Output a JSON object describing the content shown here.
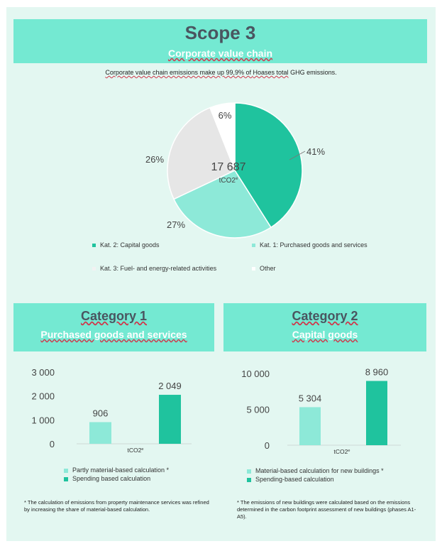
{
  "header": {
    "title": "Scope 3",
    "subtitle": "Corporate value chain",
    "intro_prefix": "Corporate value chain emissions make up 99,9% of ",
    "intro_mark": "Hoases total",
    "intro_suffix": " GHG emissions."
  },
  "colors": {
    "banner": "#74e9d2",
    "panel": "#e3f7f1",
    "dark_teal": "#1fc39e",
    "light_teal": "#8de9d8",
    "grey": "#e6e6e6",
    "white": "#ffffff"
  },
  "category1": {
    "title": "Category  1",
    "subtitle": "Purchased goods and services"
  },
  "category2": {
    "title": "Category 2",
    "subtitle": "Capital goods"
  },
  "chart_data": [
    {
      "type": "pie",
      "center_value": "17 687",
      "center_unit": "tCO2e",
      "slices": [
        {
          "name": "Kat. 2: Capital goods",
          "value": 41,
          "label": "41%",
          "color": "#1fc39e"
        },
        {
          "name": "Kat. 1: Purchased goods and services",
          "value": 27,
          "label": "27%",
          "color": "#8de9d8"
        },
        {
          "name": "Kat. 3: Fuel- and energy-related activities",
          "value": 26,
          "label": "26%",
          "color": "#e6e6e6"
        },
        {
          "name": "Other",
          "value": 6,
          "label": "6%",
          "color": "#ffffff"
        }
      ],
      "legend_position": "bottom"
    },
    {
      "type": "bar",
      "categories": [
        "tCO2e"
      ],
      "series": [
        {
          "name": "Partly material-based calculation *",
          "values": [
            906
          ],
          "label": "906",
          "color": "#8de9d8"
        },
        {
          "name": "Spending based calculation",
          "values": [
            2049
          ],
          "label": "2 049",
          "color": "#1fc39e"
        }
      ],
      "yticks": [
        "3 000",
        "2 000",
        "1 000",
        "0"
      ],
      "ylim": [
        0,
        3000
      ],
      "legend_position": "bottom",
      "note": "* The calculation of emissions from property maintenance services was refined by increasing the share of material-based calculation."
    },
    {
      "type": "bar",
      "categories": [
        "tCO2e"
      ],
      "series": [
        {
          "name": "Material-based calculation for new buildings *",
          "values": [
            5304
          ],
          "label": "5 304",
          "color": "#8de9d8"
        },
        {
          "name": "Spending-based calculation",
          "values": [
            8960
          ],
          "label": "8 960",
          "color": "#1fc39e"
        }
      ],
      "yticks": [
        "10 000",
        "5 000",
        "0"
      ],
      "ylim": [
        0,
        10000
      ],
      "legend_position": "bottom",
      "note": "* The emissions of new buildings were calculated based on the emissions determined in the carbon footprint assessment of new buildings (phases A1-A5)."
    }
  ]
}
